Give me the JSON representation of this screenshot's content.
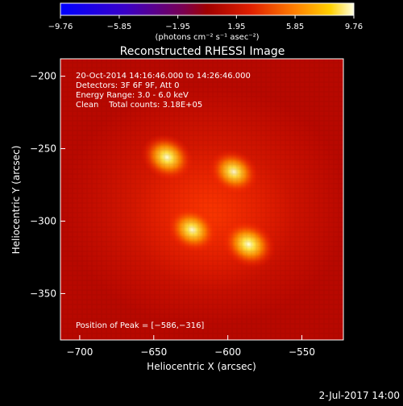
{
  "colorbar": {
    "ticks": [
      "-9.76",
      "-5.85",
      "-1.95",
      "1.95",
      "5.85",
      "9.76"
    ],
    "unit_label": "(photons cm⁻² s⁻¹ asec⁻²)",
    "range": [
      -9.76,
      9.76
    ]
  },
  "footer": {
    "date": "2-Jul-2017 14:00"
  },
  "chart_data": {
    "type": "heatmap",
    "title": "Reconstructed RHESSI Image",
    "xlabel": "Heliocentric X (arcsec)",
    "ylabel": "Heliocentric Y (arcsec)",
    "xlim": [
      -713,
      -522
    ],
    "ylim": [
      -382,
      -188
    ],
    "x_ticks": [
      -700,
      -650,
      -600,
      -550
    ],
    "y_ticks": [
      -200,
      -250,
      -300,
      -350
    ],
    "x_tick_labels": [
      "−700",
      "−650",
      "−600",
      "−550"
    ],
    "y_tick_labels": [
      "−200",
      "−250",
      "−300",
      "−350"
    ],
    "annotations": [
      "20-Oct-2014 14:16:46.000 to 14:26:46.000",
      "Detectors: 3F 6F 9F, Att 0",
      "Energy Range: 3.0 - 6.0 keV",
      "Clean    Total counts: 3.18E+05"
    ],
    "peak_label": "Position of Peak = [−586,−316]",
    "peak": [
      -586,
      -316
    ],
    "sources": [
      {
        "x": -641,
        "y": -256,
        "intensity": 8.8
      },
      {
        "x": -596,
        "y": -266,
        "intensity": 7.6
      },
      {
        "x": -624,
        "y": -306,
        "intensity": 8.2
      },
      {
        "x": -586,
        "y": -316,
        "intensity": 9.76
      }
    ],
    "grid": false
  }
}
